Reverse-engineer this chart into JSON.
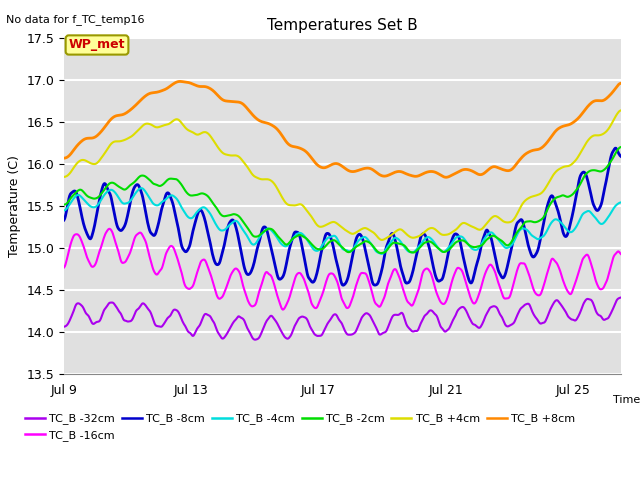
{
  "title": "Temperatures Set B",
  "subtitle": "No data for f_TC_temp16",
  "xlabel": "Time",
  "ylabel": "Temperature (C)",
  "ylim": [
    13.5,
    17.5
  ],
  "x_ticks": [
    9,
    13,
    17,
    21,
    25
  ],
  "x_tick_labels": [
    "Jul 9",
    "Jul 13",
    "Jul 17",
    "Jul 21",
    "Jul 25"
  ],
  "y_ticks": [
    13.5,
    14.0,
    14.5,
    15.0,
    15.5,
    16.0,
    16.5,
    17.0,
    17.5
  ],
  "bg_color": "#e0e0e0",
  "grid_color": "#ffffff",
  "series": [
    {
      "label": "TC_B -32cm",
      "color": "#aa00ee",
      "lw": 1.5
    },
    {
      "label": "TC_B -16cm",
      "color": "#ff00ff",
      "lw": 1.5
    },
    {
      "label": "TC_B -8cm",
      "color": "#0000cc",
      "lw": 2.0
    },
    {
      "label": "TC_B -4cm",
      "color": "#00dddd",
      "lw": 1.5
    },
    {
      "label": "TC_B -2cm",
      "color": "#00dd00",
      "lw": 1.5
    },
    {
      "label": "TC_B +4cm",
      "color": "#dddd00",
      "lw": 1.5
    },
    {
      "label": "TC_B +8cm",
      "color": "#ff8800",
      "lw": 2.0
    }
  ],
  "wp_met_label": "WP_met",
  "wp_met_color": "#cc0000",
  "wp_met_bg": "#ffff99",
  "wp_met_border": "#999900",
  "figsize": [
    6.4,
    4.8
  ],
  "dpi": 100
}
